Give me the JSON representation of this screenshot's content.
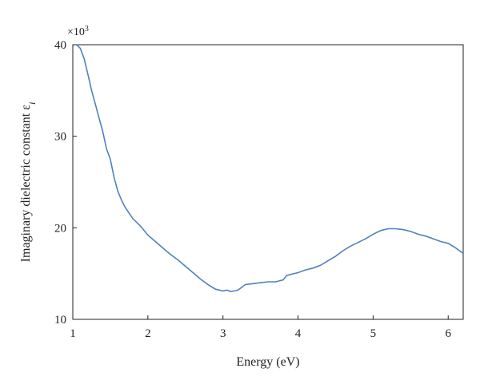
{
  "chart_data": {
    "type": "line",
    "title": "",
    "xlabel": "Energy (eV)",
    "ylabel": "Imaginary dielectric constant ε",
    "ylabel_subscript": "i",
    "y_multiplier_base": "×10",
    "y_multiplier_exp": "3",
    "xlim": [
      1.0,
      6.2
    ],
    "ylim": [
      10,
      40
    ],
    "x_ticks": [
      1,
      2,
      3,
      4,
      5,
      6
    ],
    "y_ticks": [
      10,
      20,
      30,
      40
    ],
    "grid": false,
    "line_color": "#4f81bd",
    "series": [
      {
        "x": [
          1.05,
          1.1,
          1.15,
          1.2,
          1.25,
          1.3,
          1.35,
          1.4,
          1.45,
          1.5,
          1.55,
          1.6,
          1.65,
          1.7,
          1.75,
          1.8,
          1.9,
          2.0,
          2.1,
          2.2,
          2.3,
          2.4,
          2.5,
          2.6,
          2.7,
          2.8,
          2.9,
          3.0,
          3.05,
          3.1,
          3.15,
          3.2,
          3.25,
          3.3,
          3.4,
          3.5,
          3.6,
          3.7,
          3.8,
          3.85,
          3.9,
          4.0,
          4.1,
          4.2,
          4.3,
          4.4,
          4.5,
          4.6,
          4.7,
          4.8,
          4.9,
          5.0,
          5.1,
          5.2,
          5.3,
          5.35,
          5.4,
          5.5,
          5.6,
          5.7,
          5.8,
          5.9,
          6.0,
          6.1,
          6.2
        ],
        "y": [
          40.0,
          39.6,
          38.5,
          36.8,
          35.0,
          33.5,
          32.0,
          30.5,
          28.6,
          27.5,
          25.5,
          24.0,
          23.0,
          22.2,
          21.6,
          21.0,
          20.2,
          19.2,
          18.5,
          17.8,
          17.1,
          16.5,
          15.8,
          15.1,
          14.4,
          13.8,
          13.3,
          13.1,
          13.2,
          13.05,
          13.1,
          13.2,
          13.5,
          13.8,
          13.9,
          14.0,
          14.1,
          14.1,
          14.3,
          14.8,
          14.9,
          15.1,
          15.4,
          15.6,
          15.9,
          16.4,
          16.9,
          17.5,
          18.0,
          18.4,
          18.8,
          19.3,
          19.7,
          19.9,
          19.9,
          19.85,
          19.8,
          19.6,
          19.3,
          19.1,
          18.8,
          18.5,
          18.3,
          17.8,
          17.2
        ]
      }
    ]
  }
}
